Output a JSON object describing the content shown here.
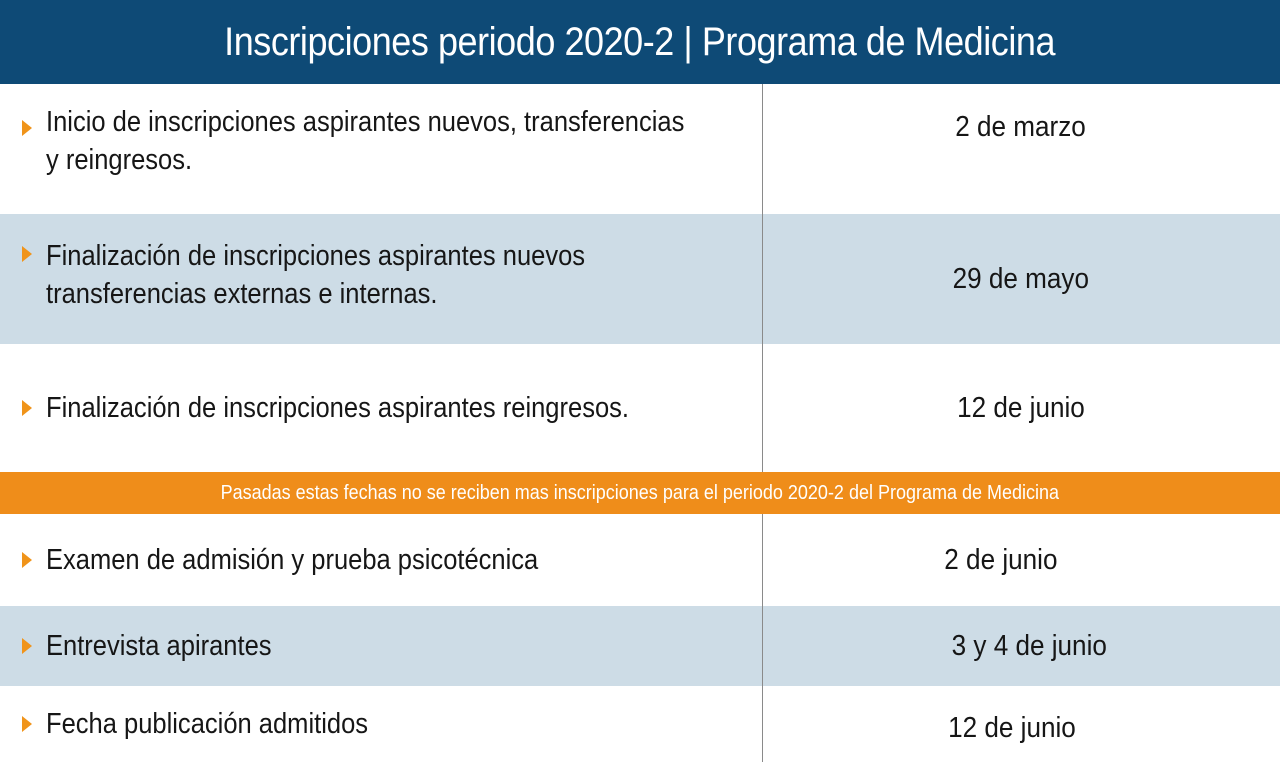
{
  "header": {
    "title": "Inscripciones periodo 2020-2 | Programa de Medicina"
  },
  "colors": {
    "header": "#0e4a76",
    "accent": "#f0941a",
    "shade": "#cddce6"
  },
  "section1": [
    {
      "label_line1": "Inicio de inscripciones aspirantes nuevos, transferencias",
      "label_line2": "y reingresos.",
      "date": "2 de marzo"
    },
    {
      "label_line1": "Finalización de inscripciones aspirantes nuevos",
      "label_line2": "transferencias externas e internas.",
      "date": "29 de mayo"
    },
    {
      "label_line1": "Finalización de inscripciones aspirantes reingresos.",
      "label_line2": "",
      "date": "12 de junio"
    }
  ],
  "notice": {
    "text": "Pasadas estas fechas no se reciben mas inscripciones para el periodo 2020-2 del Programa de Medicina"
  },
  "section2": [
    {
      "label": "Examen de admisión y prueba psicotécnica",
      "date": "2 de junio"
    },
    {
      "label": "Entrevista apirantes",
      "date": "3 y 4 de junio"
    },
    {
      "label": "Fecha publicación admitidos",
      "date": "12 de junio"
    }
  ]
}
